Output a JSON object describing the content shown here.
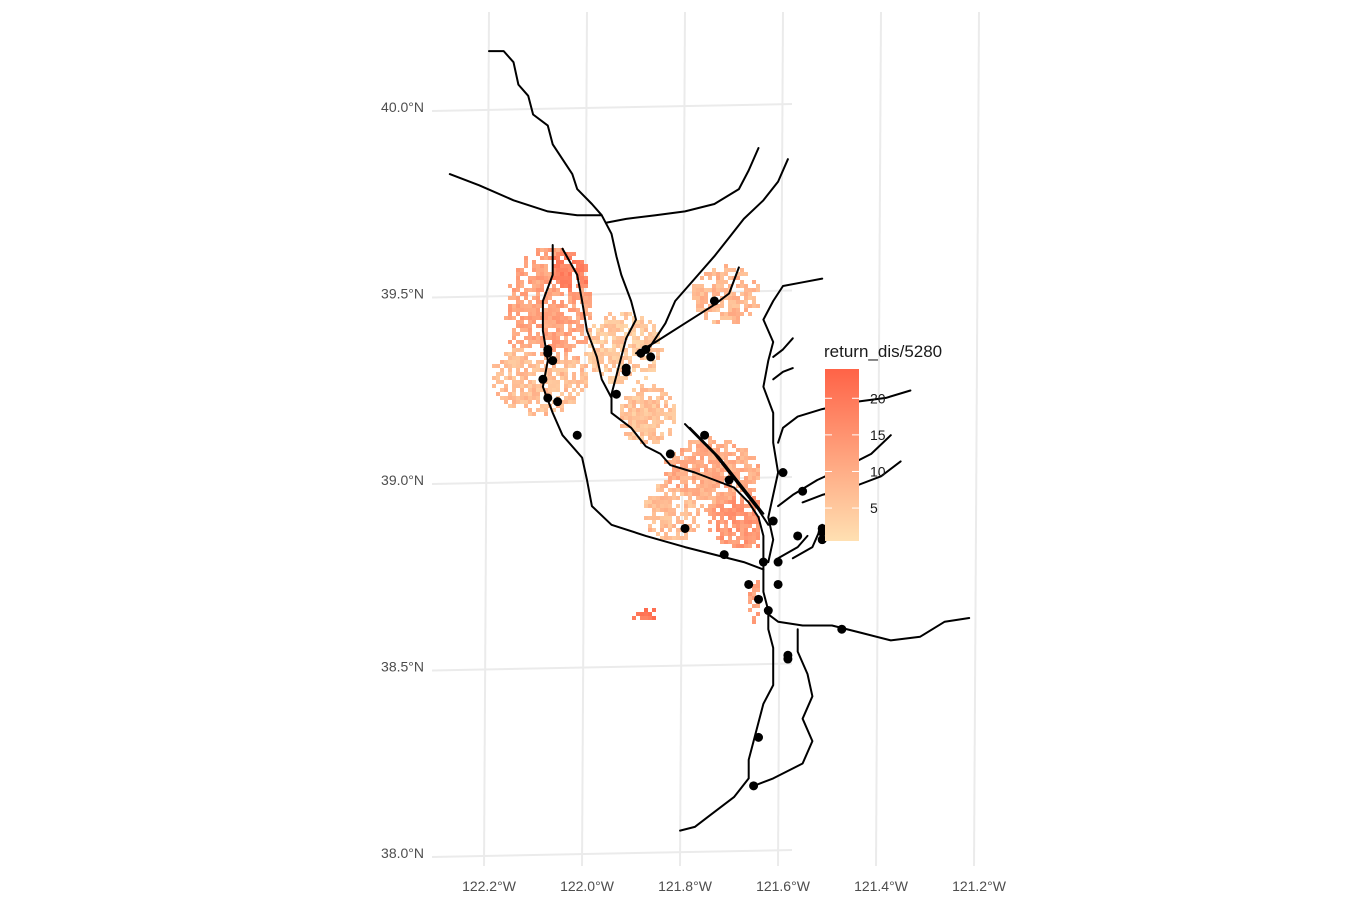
{
  "chart_data": {
    "type": "map",
    "title": "",
    "xlabel": "",
    "ylabel": "",
    "x_ticks": [
      "122.2°W",
      "122.0°W",
      "121.8°W",
      "121.6°W",
      "121.4°W",
      "121.2°W"
    ],
    "y_ticks": [
      "40.0°N",
      "39.5°N",
      "39.0°N",
      "38.5°N",
      "38.0°N"
    ],
    "xlim": [
      -122.3,
      -121.2
    ],
    "ylim": [
      38.0,
      40.2
    ],
    "grid": true,
    "legend": {
      "title": "return_dis/5280",
      "placement": "right",
      "ticks": [
        "20",
        "15",
        "10",
        "5"
      ],
      "range": [
        0.5,
        24
      ],
      "color_low": "#FFE0B2",
      "color_high": "#FF6347"
    },
    "points": [
      {
        "lon": -121.74,
        "lat": 39.48
      },
      {
        "lon": -121.88,
        "lat": 39.35
      },
      {
        "lon": -121.89,
        "lat": 39.34
      },
      {
        "lon": -121.87,
        "lat": 39.33
      },
      {
        "lon": -121.92,
        "lat": 39.3
      },
      {
        "lon": -121.92,
        "lat": 39.29
      },
      {
        "lon": -122.08,
        "lat": 39.35
      },
      {
        "lon": -122.08,
        "lat": 39.34
      },
      {
        "lon": -122.07,
        "lat": 39.32
      },
      {
        "lon": -122.09,
        "lat": 39.27
      },
      {
        "lon": -122.08,
        "lat": 39.22
      },
      {
        "lon": -122.06,
        "lat": 39.21
      },
      {
        "lon": -121.94,
        "lat": 39.23
      },
      {
        "lon": -122.02,
        "lat": 39.12
      },
      {
        "lon": -121.76,
        "lat": 39.12
      },
      {
        "lon": -121.83,
        "lat": 39.07
      },
      {
        "lon": -121.71,
        "lat": 39.0
      },
      {
        "lon": -121.6,
        "lat": 39.02
      },
      {
        "lon": -121.56,
        "lat": 38.97
      },
      {
        "lon": -121.62,
        "lat": 38.89
      },
      {
        "lon": -121.8,
        "lat": 38.87
      },
      {
        "lon": -121.52,
        "lat": 38.87
      },
      {
        "lon": -121.52,
        "lat": 38.86
      },
      {
        "lon": -121.57,
        "lat": 38.85
      },
      {
        "lon": -121.52,
        "lat": 38.84
      },
      {
        "lon": -121.72,
        "lat": 38.8
      },
      {
        "lon": -121.64,
        "lat": 38.78
      },
      {
        "lon": -121.61,
        "lat": 38.78
      },
      {
        "lon": -121.61,
        "lat": 38.72
      },
      {
        "lon": -121.67,
        "lat": 38.72
      },
      {
        "lon": -121.65,
        "lat": 38.68
      },
      {
        "lon": -121.63,
        "lat": 38.65
      },
      {
        "lon": -121.48,
        "lat": 38.6
      },
      {
        "lon": -121.59,
        "lat": 38.53
      },
      {
        "lon": -121.59,
        "lat": 38.52
      },
      {
        "lon": -121.65,
        "lat": 38.31
      },
      {
        "lon": -121.66,
        "lat": 38.18
      }
    ],
    "rivers": [
      [
        [
          -122.2,
          40.15
        ],
        [
          -122.17,
          40.15
        ],
        [
          -122.15,
          40.12
        ],
        [
          -122.14,
          40.06
        ],
        [
          -122.12,
          40.03
        ],
        [
          -122.11,
          39.98
        ],
        [
          -122.08,
          39.95
        ],
        [
          -122.07,
          39.9
        ],
        [
          -122.05,
          39.86
        ],
        [
          -122.03,
          39.82
        ],
        [
          -122.02,
          39.78
        ],
        [
          -121.99,
          39.74
        ],
        [
          -121.97,
          39.71
        ],
        [
          -121.95,
          39.66
        ],
        [
          -121.94,
          39.6
        ],
        [
          -121.93,
          39.55
        ],
        [
          -121.91,
          39.48
        ],
        [
          -121.9,
          39.43
        ],
        [
          -121.92,
          39.38
        ],
        [
          -121.93,
          39.33
        ],
        [
          -121.94,
          39.28
        ],
        [
          -121.95,
          39.23
        ],
        [
          -121.95,
          39.18
        ],
        [
          -121.91,
          39.14
        ],
        [
          -121.88,
          39.09
        ],
        [
          -121.85,
          39.07
        ],
        [
          -121.83,
          39.04
        ],
        [
          -121.78,
          39.02
        ],
        [
          -121.74,
          39.0
        ],
        [
          -121.7,
          38.98
        ],
        [
          -121.67,
          38.94
        ],
        [
          -121.65,
          38.9
        ],
        [
          -121.64,
          38.85
        ],
        [
          -121.64,
          38.8
        ],
        [
          -121.64,
          38.75
        ],
        [
          -121.64,
          38.7
        ],
        [
          -121.63,
          38.65
        ],
        [
          -121.63,
          38.6
        ],
        [
          -121.62,
          38.55
        ],
        [
          -121.62,
          38.5
        ],
        [
          -121.62,
          38.45
        ],
        [
          -121.64,
          38.4
        ],
        [
          -121.65,
          38.35
        ],
        [
          -121.66,
          38.3
        ],
        [
          -121.67,
          38.25
        ],
        [
          -121.67,
          38.2
        ],
        [
          -121.7,
          38.15
        ],
        [
          -121.75,
          38.1
        ],
        [
          -121.78,
          38.07
        ],
        [
          -121.81,
          38.06
        ]
      ],
      [
        [
          -122.28,
          39.82
        ],
        [
          -122.22,
          39.79
        ],
        [
          -122.15,
          39.75
        ],
        [
          -122.08,
          39.72
        ],
        [
          -122.02,
          39.71
        ],
        [
          -121.97,
          39.71
        ]
      ],
      [
        [
          -121.65,
          39.89
        ],
        [
          -121.67,
          39.83
        ],
        [
          -121.69,
          39.78
        ],
        [
          -121.74,
          39.74
        ],
        [
          -121.8,
          39.72
        ],
        [
          -121.86,
          39.71
        ],
        [
          -121.92,
          39.7
        ],
        [
          -121.96,
          39.69
        ]
      ],
      [
        [
          -121.59,
          39.86
        ],
        [
          -121.61,
          39.8
        ],
        [
          -121.64,
          39.75
        ],
        [
          -121.68,
          39.7
        ],
        [
          -121.71,
          39.65
        ],
        [
          -121.74,
          39.6
        ],
        [
          -121.78,
          39.54
        ],
        [
          -121.82,
          39.48
        ],
        [
          -121.84,
          39.42
        ],
        [
          -121.87,
          39.36
        ],
        [
          -121.89,
          39.33
        ]
      ],
      [
        [
          -121.69,
          39.57
        ],
        [
          -121.71,
          39.5
        ],
        [
          -121.74,
          39.47
        ],
        [
          -121.8,
          39.42
        ],
        [
          -121.86,
          39.37
        ],
        [
          -121.9,
          39.34
        ]
      ],
      [
        [
          -121.52,
          39.54
        ],
        [
          -121.56,
          39.53
        ],
        [
          -121.6,
          39.52
        ],
        [
          -121.62,
          39.48
        ],
        [
          -121.64,
          39.43
        ],
        [
          -121.62,
          39.37
        ],
        [
          -121.63,
          39.32
        ],
        [
          -121.64,
          39.25
        ],
        [
          -121.62,
          39.18
        ],
        [
          -121.62,
          39.1
        ],
        [
          -121.61,
          39.02
        ],
        [
          -121.62,
          38.96
        ],
        [
          -121.63,
          38.9
        ],
        [
          -121.62,
          38.84
        ],
        [
          -121.63,
          38.78
        ]
      ],
      [
        [
          -121.58,
          39.38
        ],
        [
          -121.6,
          39.35
        ],
        [
          -121.62,
          39.33
        ]
      ],
      [
        [
          -121.58,
          39.3
        ],
        [
          -121.6,
          39.29
        ],
        [
          -121.62,
          39.27
        ]
      ],
      [
        [
          -121.34,
          39.24
        ],
        [
          -121.39,
          39.22
        ],
        [
          -121.45,
          39.21
        ],
        [
          -121.52,
          39.19
        ],
        [
          -121.57,
          39.17
        ],
        [
          -121.6,
          39.14
        ],
        [
          -121.61,
          39.1
        ]
      ],
      [
        [
          -121.38,
          39.12
        ],
        [
          -121.42,
          39.07
        ],
        [
          -121.48,
          39.03
        ],
        [
          -121.53,
          39.0
        ],
        [
          -121.58,
          38.96
        ],
        [
          -121.61,
          38.93
        ]
      ],
      [
        [
          -121.36,
          39.05
        ],
        [
          -121.4,
          39.01
        ],
        [
          -121.46,
          38.98
        ],
        [
          -121.52,
          38.96
        ],
        [
          -121.56,
          38.94
        ]
      ],
      [
        [
          -122.07,
          39.63
        ],
        [
          -122.07,
          39.55
        ],
        [
          -122.09,
          39.48
        ],
        [
          -122.09,
          39.4
        ],
        [
          -122.08,
          39.32
        ],
        [
          -122.09,
          39.25
        ],
        [
          -122.07,
          39.18
        ],
        [
          -122.05,
          39.12
        ],
        [
          -122.01,
          39.06
        ],
        [
          -122.0,
          39.0
        ],
        [
          -121.99,
          38.93
        ],
        [
          -121.95,
          38.88
        ],
        [
          -121.88,
          38.85
        ],
        [
          -121.8,
          38.82
        ],
        [
          -121.74,
          38.8
        ],
        [
          -121.68,
          38.78
        ],
        [
          -121.64,
          38.76
        ]
      ],
      [
        [
          -122.05,
          39.62
        ],
        [
          -122.02,
          39.55
        ],
        [
          -122.01,
          39.48
        ],
        [
          -122.0,
          39.4
        ],
        [
          -121.98,
          39.33
        ],
        [
          -121.97,
          39.27
        ],
        [
          -121.95,
          39.22
        ]
      ],
      [
        [
          -121.8,
          39.15
        ],
        [
          -121.77,
          39.11
        ],
        [
          -121.74,
          39.07
        ],
        [
          -121.71,
          39.02
        ],
        [
          -121.68,
          38.97
        ],
        [
          -121.65,
          38.92
        ],
        [
          -121.63,
          38.88
        ]
      ],
      [
        [
          -121.79,
          39.14
        ],
        [
          -121.76,
          39.1
        ],
        [
          -121.73,
          39.06
        ],
        [
          -121.7,
          39.01
        ],
        [
          -121.67,
          38.96
        ],
        [
          -121.64,
          38.91
        ]
      ],
      [
        [
          -121.55,
          38.85
        ],
        [
          -121.57,
          38.82
        ],
        [
          -121.61,
          38.79
        ]
      ],
      [
        [
          -121.52,
          38.88
        ],
        [
          -121.54,
          38.82
        ],
        [
          -121.58,
          38.79
        ]
      ],
      [
        [
          -121.22,
          38.63
        ],
        [
          -121.27,
          38.62
        ],
        [
          -121.32,
          38.58
        ],
        [
          -121.38,
          38.57
        ],
        [
          -121.44,
          38.59
        ],
        [
          -121.5,
          38.61
        ],
        [
          -121.56,
          38.61
        ],
        [
          -121.61,
          38.62
        ],
        [
          -121.63,
          38.64
        ]
      ],
      [
        [
          -121.57,
          38.6
        ],
        [
          -121.57,
          38.54
        ],
        [
          -121.55,
          38.48
        ],
        [
          -121.54,
          38.42
        ],
        [
          -121.56,
          38.36
        ],
        [
          -121.54,
          38.3
        ],
        [
          -121.56,
          38.24
        ],
        [
          -121.62,
          38.2
        ],
        [
          -121.66,
          38.18
        ]
      ]
    ]
  }
}
